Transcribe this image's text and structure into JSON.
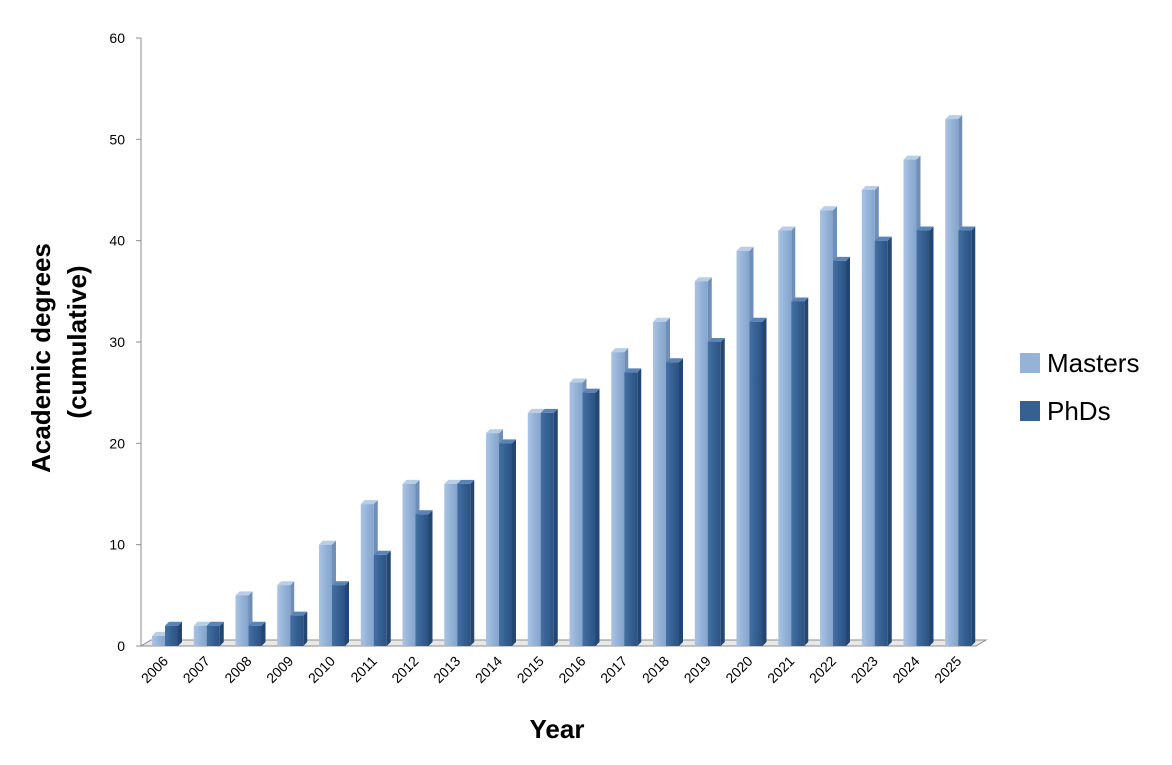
{
  "chart_data": {
    "type": "bar",
    "title": "",
    "xlabel": "Year",
    "ylabel": "Academic degrees (cumulative)",
    "ylabel_lines": [
      "Academic degrees",
      "(cumulative)"
    ],
    "ylim": [
      0,
      60
    ],
    "yticks": [
      0,
      10,
      20,
      30,
      40,
      50,
      60
    ],
    "grid": false,
    "legend_position": "right",
    "categories": [
      "2006",
      "2007",
      "2008",
      "2009",
      "2010",
      "2011",
      "2012",
      "2013",
      "2014",
      "2015",
      "2016",
      "2017",
      "2018",
      "2019",
      "2020",
      "2021",
      "2022",
      "2023",
      "2024",
      "2025"
    ],
    "series": [
      {
        "name": "Masters",
        "color": "#95B3D7",
        "values": [
          1,
          2,
          5,
          6,
          10,
          14,
          16,
          16,
          21,
          23,
          26,
          29,
          32,
          36,
          39,
          41,
          43,
          45,
          48,
          52
        ]
      },
      {
        "name": "PhDs",
        "color": "#366092",
        "values": [
          2,
          2,
          2,
          3,
          6,
          9,
          13,
          16,
          20,
          23,
          25,
          27,
          28,
          30,
          32,
          34,
          38,
          40,
          41,
          41
        ]
      }
    ]
  }
}
